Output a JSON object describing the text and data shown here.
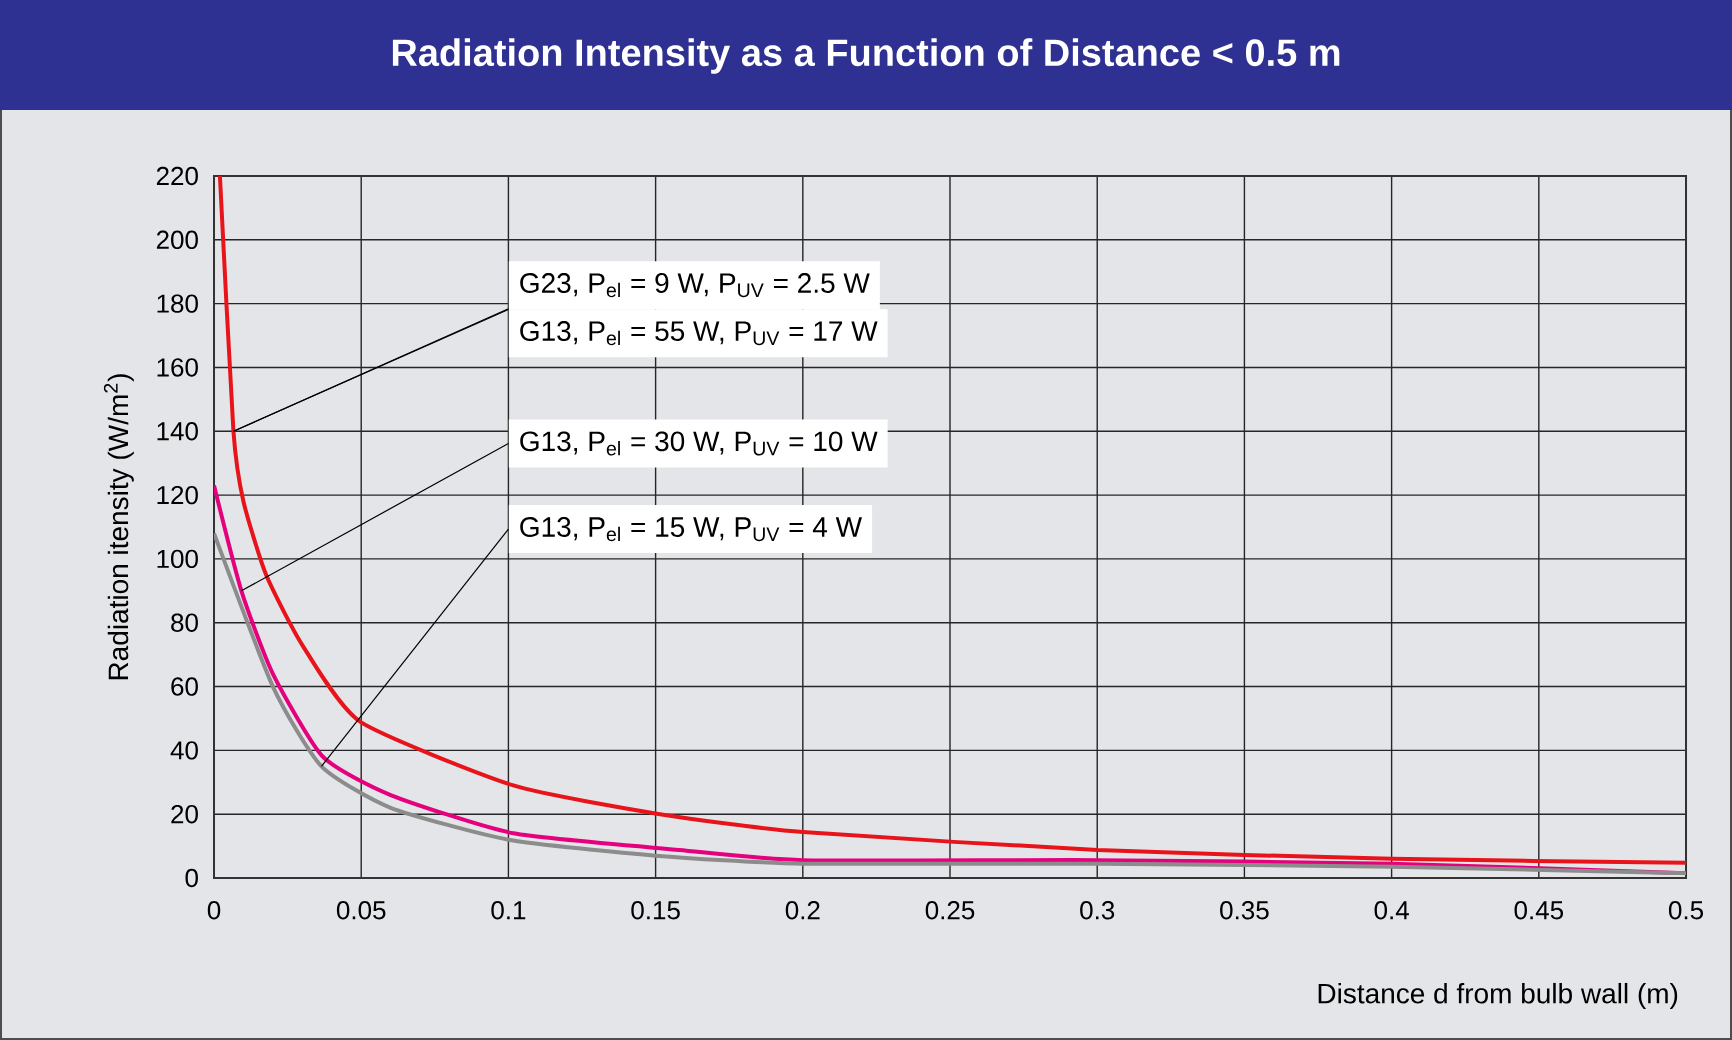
{
  "chart_data": {
    "type": "line",
    "title": "Radiation Intensity as a Function of Distance < 0.5 m",
    "xlabel": "Distance d from bulb wall (m)",
    "ylabel": "Radiation itensity (W/m$^{2}$)",
    "xlim": [
      0,
      0.5
    ],
    "ylim": [
      0,
      220
    ],
    "xticks": [
      0,
      0.05,
      0.1,
      0.15,
      0.2,
      0.25,
      0.3,
      0.35,
      0.4,
      0.45,
      0.5
    ],
    "yticks": [
      0,
      20,
      40,
      60,
      80,
      100,
      120,
      140,
      160,
      180,
      200,
      220
    ],
    "grid": true,
    "marker": "none",
    "line_style": "solid",
    "series": [
      {
        "color": "#e8141b",
        "x": [
          0.002,
          0.0066,
          0.01,
          0.0177,
          0.03,
          0.0496,
          0.1017,
          0.1515,
          0.2,
          0.3,
          0.4,
          0.5
        ],
        "values": [
          220,
          140,
          118,
          95,
          73,
          49,
          29,
          20,
          14.4,
          8.8,
          6,
          4.8
        ]
      },
      {
        "color": "#e5007d",
        "x": [
          0,
          0.0093,
          0.02,
          0.037,
          0.06,
          0.1017,
          0.158,
          0.2,
          0.3,
          0.4,
          0.5
        ],
        "values": [
          123,
          90,
          64,
          38,
          26,
          14,
          8.8,
          5.6,
          5.6,
          4.5,
          1.5
        ]
      },
      {
        "color": "#8c8c8c",
        "x": [
          0,
          0.02,
          0.0365,
          0.06,
          0.1,
          0.15,
          0.2,
          0.3,
          0.4,
          0.5
        ],
        "values": [
          108,
          60,
          35,
          22,
          12,
          7,
          4.5,
          4.5,
          3.5,
          1.5
        ]
      }
    ],
    "annotations": [
      {
        "text": "G23, P$_{el}$ = 9 W, P$_{UV}$ = 2.5 W",
        "x": 0.0066,
        "y": 140
      },
      {
        "text": "G13, P$_{el}$ = 55 W, P$_{UV}$ = 17 W",
        "x": 0.0066,
        "y": 140
      },
      {
        "text": "G13, P$_{el}$ = 30 W, P$_{UV}$ = 10 W",
        "x": 0.0093,
        "y": 90
      },
      {
        "text": "G13, P$_{el}$ = 15 W, P$_{UV}$ = 4 W",
        "x": 0.0365,
        "y": 35
      }
    ]
  }
}
